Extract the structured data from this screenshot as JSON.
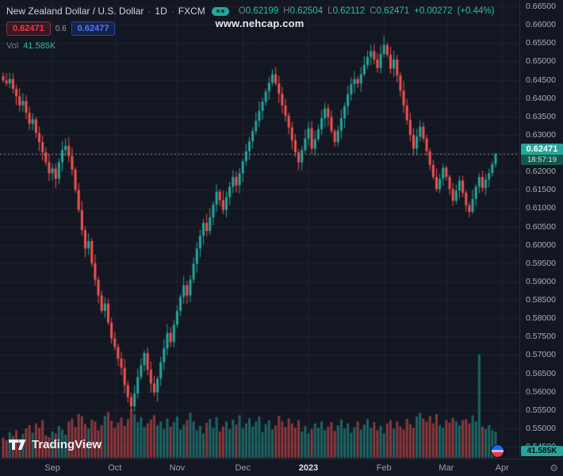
{
  "header": {
    "symbol_title": "New Zealand Dollar / U.S. Dollar",
    "dot": "·",
    "interval": "1D",
    "exchange": "FXCM",
    "ohlc": {
      "o_label": "O",
      "o": "0.62199",
      "h_label": "H",
      "h": "0.62504",
      "l_label": "L",
      "l": "0.62112",
      "c_label": "C",
      "c": "0.62471",
      "change": "+0.00272",
      "change_pct": "(+0.44%)"
    },
    "sell_price": "0.62471",
    "spread": "0.6",
    "buy_price": "0.62477",
    "vol_label": "Vol",
    "vol_value": "41.585K"
  },
  "watermark": "www.nehcap.com",
  "brand": "TradingView",
  "price_label": {
    "price": "0.62471",
    "countdown": "18:57:19"
  },
  "volume_axis_label": "41.585K",
  "gear_glyph": "⚙",
  "colors": {
    "background": "#131722",
    "grid": "#1e2330",
    "up": "#26a69a",
    "down": "#ef5350",
    "vol_up": "rgba(38,166,154,0.55)",
    "vol_down": "rgba(239,83,80,0.55)",
    "price_line": "rgba(150,153,163,0.9)",
    "accent_buy": "#2962ff",
    "accent_sell": "#f23645"
  },
  "chart_data": {
    "type": "candlestick",
    "title": "New Zealand Dollar / U.S. Dollar · 1D · FXCM",
    "legend_position": "top-left",
    "grid": true,
    "y_axis": {
      "min": 0.545,
      "max": 0.665,
      "step": 0.005,
      "format_decimals": 5
    },
    "x_ticks": [
      {
        "label": "Sep",
        "i": 15
      },
      {
        "label": "Oct",
        "i": 34
      },
      {
        "label": "Nov",
        "i": 53
      },
      {
        "label": "Dec",
        "i": 73
      },
      {
        "label": "2023",
        "i": 93,
        "major": true
      },
      {
        "label": "Feb",
        "i": 116
      },
      {
        "label": "Mar",
        "i": 135
      },
      {
        "label": "Apr",
        "i": 152
      }
    ],
    "first_open": 0.646,
    "closes": [
      0.6448,
      0.644,
      0.6452,
      0.6425,
      0.6405,
      0.638,
      0.6392,
      0.636,
      0.633,
      0.6342,
      0.6305,
      0.628,
      0.6252,
      0.6225,
      0.6195,
      0.6208,
      0.618,
      0.6225,
      0.6258,
      0.627,
      0.6242,
      0.6205,
      0.615,
      0.6095,
      0.604,
      0.599,
      0.601,
      0.595,
      0.5905,
      0.5862,
      0.582,
      0.584,
      0.5788,
      0.5745,
      0.5722,
      0.569,
      0.5665,
      0.5618,
      0.5585,
      0.556,
      0.5595,
      0.564,
      0.5672,
      0.5705,
      0.566,
      0.5622,
      0.5598,
      0.5635,
      0.568,
      0.5718,
      0.576,
      0.5735,
      0.5782,
      0.582,
      0.5858,
      0.589,
      0.5862,
      0.5905,
      0.5948,
      0.599,
      0.6025,
      0.606,
      0.6038,
      0.6075,
      0.611,
      0.6145,
      0.6122,
      0.6095,
      0.613,
      0.6158,
      0.6185,
      0.6162,
      0.6195,
      0.6228,
      0.6255,
      0.6282,
      0.631,
      0.6338,
      0.6365,
      0.639,
      0.6418,
      0.6442,
      0.6465,
      0.644,
      0.6412,
      0.638,
      0.6352,
      0.632,
      0.6285,
      0.6252,
      0.6225,
      0.6258,
      0.629,
      0.6318,
      0.6262,
      0.6288,
      0.6315,
      0.6345,
      0.6372,
      0.6348,
      0.631,
      0.628,
      0.6312,
      0.6345,
      0.6378,
      0.641,
      0.6438,
      0.6452,
      0.644,
      0.6465,
      0.649,
      0.6512,
      0.6528,
      0.6505,
      0.6482,
      0.652,
      0.6545,
      0.6518,
      0.648,
      0.6505,
      0.6462,
      0.642,
      0.638,
      0.634,
      0.63,
      0.6262,
      0.6295,
      0.6322,
      0.629,
      0.6255,
      0.6218,
      0.6185,
      0.6152,
      0.618,
      0.621,
      0.6185,
      0.6152,
      0.612,
      0.6148,
      0.6175,
      0.6142,
      0.6108,
      0.609,
      0.6125,
      0.6158,
      0.6185,
      0.6155,
      0.6178,
      0.6195,
      0.622,
      0.62471
    ],
    "volumes_k": [
      32,
      28,
      41,
      35,
      44,
      30,
      38,
      47,
      52,
      40,
      55,
      48,
      60,
      36,
      33,
      42,
      39,
      51,
      45,
      37,
      58,
      63,
      49,
      70,
      66,
      54,
      47,
      61,
      58,
      44,
      52,
      67,
      73,
      59,
      48,
      56,
      64,
      51,
      62,
      78,
      70,
      57,
      65,
      49,
      55,
      61,
      68,
      52,
      58,
      46,
      63,
      50,
      57,
      66,
      45,
      53,
      60,
      72,
      58,
      44,
      51,
      39,
      56,
      62,
      48,
      65,
      42,
      50,
      58,
      46,
      61,
      53,
      68,
      47,
      55,
      63,
      50,
      58,
      66,
      41,
      54,
      60,
      45,
      52,
      67,
      58,
      49,
      63,
      55,
      48,
      60,
      42,
      51,
      39,
      46,
      55,
      48,
      58,
      44,
      50,
      57,
      43,
      52,
      61,
      47,
      55,
      40,
      49,
      58,
      45,
      53,
      62,
      48,
      57,
      44,
      51,
      39,
      55,
      60,
      47,
      58,
      50,
      45,
      62,
      54,
      48,
      66,
      72,
      63,
      58,
      67,
      55,
      70,
      52,
      48,
      60,
      56,
      64,
      58,
      52,
      60,
      62,
      55,
      68,
      58,
      165,
      50,
      46,
      52,
      44,
      41.585
    ],
    "last_candle": {
      "o": 0.62199,
      "h": 0.62504,
      "l": 0.62112,
      "c": 0.62471
    },
    "current_price": 0.62471
  }
}
